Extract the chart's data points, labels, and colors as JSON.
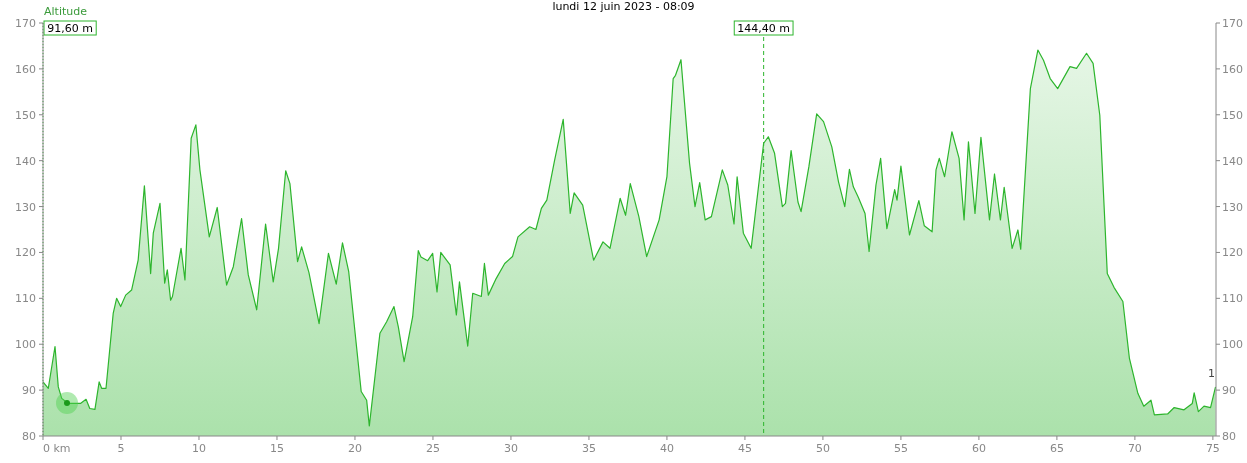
{
  "chart_data": {
    "type": "area",
    "title": "lundi 12 juin 2023 - 08:09",
    "ylabel": "Altitude",
    "series": [
      {
        "color": "#2db52d",
        "x": [
          0,
          0.34,
          0.77,
          0.98,
          1.2,
          1.62,
          2.4,
          2.76,
          3.0,
          3.33,
          3.6,
          3.76,
          4.04,
          4.5,
          4.72,
          4.98,
          5.3,
          5.68,
          6.1,
          6.5,
          6.9,
          7.07,
          7.5,
          7.8,
          7.97,
          8.18,
          8.3,
          8.85,
          9.1,
          9.5,
          9.8,
          10.06,
          10.66,
          11.17,
          11.77,
          12.2,
          12.73,
          13.16,
          13.7,
          14.27,
          14.76,
          15.1,
          15.56,
          15.83,
          16.32,
          16.58,
          17.05,
          17.7,
          18.3,
          18.8,
          19.2,
          19.6,
          20.4,
          20.75,
          20.92,
          21.6,
          22.03,
          22.5,
          22.78,
          23.15,
          23.7,
          24.06,
          24.23,
          24.66,
          24.98,
          25.26,
          25.5,
          26.1,
          26.5,
          26.7,
          27.23,
          27.55,
          28.1,
          28.3,
          28.55,
          29.05,
          29.6,
          30.1,
          30.45,
          31.2,
          31.6,
          31.95,
          32.3,
          32.8,
          33.35,
          33.8,
          34.05,
          34.6,
          35.3,
          35.9,
          36.35,
          37.0,
          37.35,
          37.65,
          38.2,
          38.7,
          39.5,
          40.0,
          40.4,
          40.55,
          40.9,
          41.45,
          41.8,
          42.1,
          42.45,
          42.85,
          43.55,
          43.9,
          44.3,
          44.5,
          44.9,
          45.4,
          46.2,
          46.5,
          46.9,
          47.4,
          47.6,
          47.96,
          48.4,
          48.6,
          49.1,
          49.6,
          50.04,
          50.57,
          51.0,
          51.4,
          51.7,
          51.95,
          52.26,
          52.7,
          52.96,
          53.4,
          53.7,
          54.1,
          54.6,
          54.75,
          55.0,
          55.55,
          56.15,
          56.5,
          57.0,
          57.25,
          57.46,
          57.8,
          58.27,
          58.73,
          59.05,
          59.33,
          59.75,
          60.13,
          60.68,
          61.0,
          61.38,
          61.62,
          62.13,
          62.5,
          62.68,
          63.3,
          63.78,
          64.14,
          64.57,
          65.05,
          65.84,
          66.26,
          66.9,
          67.32,
          67.75,
          68.23,
          68.66,
          69.23,
          69.65,
          70.19,
          70.57,
          71.03,
          71.25,
          72.1,
          72.52,
          73.15,
          73.68,
          73.8,
          74.07,
          74.43,
          74.85,
          75.17
        ],
        "values": [
          91.8,
          90.4,
          99.5,
          90.7,
          88.2,
          87.1,
          87.1,
          88,
          86,
          85.8,
          91.8,
          90.4,
          90.4,
          106.7,
          110,
          108.2,
          110.7,
          111.8,
          118.3,
          134.5,
          115.4,
          124.2,
          130.7,
          113.3,
          116.2,
          109.6,
          110.4,
          120.9,
          114,
          144.9,
          147.8,
          138,
          123.4,
          129.8,
          112.9,
          116.9,
          127.4,
          115.1,
          107.5,
          126.2,
          113.6,
          120.9,
          137.8,
          135,
          118,
          121.2,
          115.6,
          104.5,
          119.8,
          113.1,
          122.1,
          115.8,
          89.7,
          87.8,
          82.2,
          102.4,
          104.9,
          108.2,
          103.8,
          96.2,
          106,
          120.4,
          119,
          118.2,
          119.8,
          111.4,
          120,
          117.3,
          106.4,
          113.6,
          99.6,
          111.1,
          110.4,
          117.6,
          110.7,
          114.3,
          117.6,
          119.1,
          123.4,
          125.6,
          125,
          129.6,
          131.4,
          140.1,
          149,
          128.5,
          133,
          130.3,
          118.3,
          122.3,
          120.9,
          131.8,
          128.1,
          135,
          127.8,
          119.1,
          127.1,
          136.5,
          157.9,
          158.6,
          162,
          139.4,
          130,
          135.2,
          127.1,
          127.8,
          138,
          134.7,
          126.2,
          136.5,
          124.2,
          120.9,
          143.8,
          145.2,
          141.6,
          130,
          130.7,
          142.2,
          131,
          128.9,
          138.7,
          150.2,
          148.5,
          143,
          135.4,
          130,
          138.1,
          134.3,
          132.1,
          128.5,
          120.2,
          134.7,
          140.5,
          125.2,
          133.7,
          131.4,
          138.8,
          123.8,
          131.3,
          125.8,
          124.5,
          138,
          140.5,
          136.5,
          146.3,
          140.5,
          127.1,
          144.1,
          128.5,
          145.1,
          127.1,
          137.1,
          127.1,
          134.2,
          120.9,
          124.9,
          120.7,
          155.7,
          164.1,
          161.9,
          157.9,
          155.7,
          160.5,
          160.1,
          163.4,
          161.2,
          149.9,
          115.4,
          112.4,
          109.3,
          96.9,
          89.3,
          86.5,
          87.8,
          84.6,
          84.8,
          86.2,
          85.7,
          87.1,
          89.4,
          85.3,
          86.5,
          86.2,
          90.7
        ]
      }
    ],
    "xlim": [
      0,
      75.2
    ],
    "xticks": [
      {
        "value": 0,
        "label": "0 km"
      },
      5,
      10,
      15,
      20,
      25,
      30,
      35,
      40,
      45,
      50,
      55,
      60,
      65,
      70,
      75
    ],
    "ylim": [
      80,
      170
    ],
    "yticks": [
      80,
      90,
      100,
      110,
      120,
      130,
      140,
      150,
      160,
      170
    ],
    "y2lim": [
      80,
      170
    ],
    "y2ticks": [
      80,
      90,
      100,
      110,
      120,
      130,
      140,
      150,
      160,
      170
    ],
    "ref_lines": [
      {
        "axis": "x",
        "value": 0,
        "label": "91,60 m",
        "line_style": "dotted"
      },
      {
        "axis": "x",
        "value": 46.2,
        "label": "144,40 m",
        "line_style": "dashed"
      }
    ],
    "annotations": [
      {
        "text": "1",
        "x": 75.17,
        "y": 90.7
      }
    ],
    "grid": false
  }
}
